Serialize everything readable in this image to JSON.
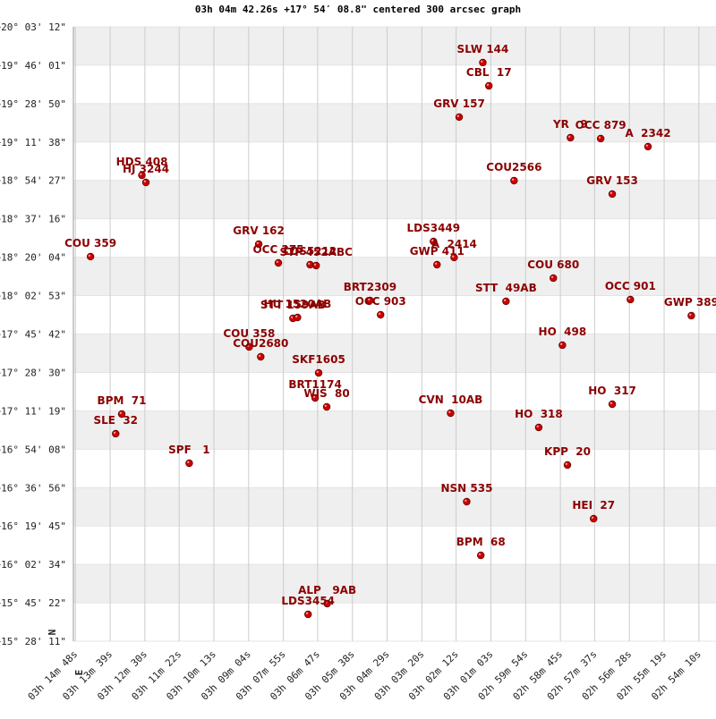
{
  "chart_data": {
    "type": "scatter",
    "title": "03h 04m 42.26s +17° 54′ 08.8\" centered 300 arcsec graph",
    "compass": {
      "north": "N",
      "east": "E"
    },
    "xlim": [
      11692,
      10416
    ],
    "ylim": [
      55691,
      72192
    ],
    "grid": true,
    "xticks": [
      {
        "value": 11688,
        "label": "03h 14m 48s"
      },
      {
        "value": 11619,
        "label": "03h 13m 39s"
      },
      {
        "value": 11550,
        "label": "03h 12m 30s"
      },
      {
        "value": 11482,
        "label": "03h 11m 22s"
      },
      {
        "value": 11413,
        "label": "03h 10m 13s"
      },
      {
        "value": 11344,
        "label": "03h 09m 04s"
      },
      {
        "value": 11275,
        "label": "03h 07m 55s"
      },
      {
        "value": 11207,
        "label": "03h 06m 47s"
      },
      {
        "value": 11138,
        "label": "03h 05m 38s"
      },
      {
        "value": 11069,
        "label": "03h 04m 29s"
      },
      {
        "value": 11000,
        "label": "03h 03m 20s"
      },
      {
        "value": 10932,
        "label": "03h 02m 12s"
      },
      {
        "value": 10863,
        "label": "03h 01m 03s"
      },
      {
        "value": 10794,
        "label": "02h 59m 54s"
      },
      {
        "value": 10725,
        "label": "02h 58m 45s"
      },
      {
        "value": 10657,
        "label": "02h 57m 37s"
      },
      {
        "value": 10588,
        "label": "02h 56m 28s"
      },
      {
        "value": 10519,
        "label": "02h 55m 19s"
      },
      {
        "value": 10450,
        "label": "02h 54m 10s"
      }
    ],
    "yticks": [
      {
        "value": 55691,
        "label": "+15° 28' 11\""
      },
      {
        "value": 56722,
        "label": "+15° 45' 22\""
      },
      {
        "value": 57754,
        "label": "+16° 02' 34\""
      },
      {
        "value": 58785,
        "label": "+16° 19' 45\""
      },
      {
        "value": 59816,
        "label": "+16° 36' 56\""
      },
      {
        "value": 60848,
        "label": "+16° 54' 08\""
      },
      {
        "value": 61879,
        "label": "+17° 11' 19\""
      },
      {
        "value": 62910,
        "label": "+17° 28' 30\""
      },
      {
        "value": 63942,
        "label": "+17° 45' 42\""
      },
      {
        "value": 64973,
        "label": "+18° 02' 53\""
      },
      {
        "value": 66004,
        "label": "+18° 20' 04\""
      },
      {
        "value": 67036,
        "label": "+18° 37' 16\""
      },
      {
        "value": 68067,
        "label": "+18° 54' 27\""
      },
      {
        "value": 69098,
        "label": "+19° 11' 38\""
      },
      {
        "value": 70130,
        "label": "+19° 28' 50\""
      },
      {
        "value": 71161,
        "label": "+19° 46' 01\""
      },
      {
        "value": 72192,
        "label": "+20° 03' 12\""
      }
    ],
    "series": [
      {
        "color": "#cc0000",
        "labels": [
          "SLW 144",
          "CBL  17",
          "GRV 157",
          "YR   9",
          "OCC 879",
          "A  2342",
          "HDS 408",
          "HJ 3244",
          "COU2566",
          "GRV 153",
          "COU 359",
          "GRV 162",
          "OCC 275",
          "LDS5212",
          "STF 452ABC",
          "LDS3449",
          "A  2414",
          "GWP 411",
          "BRT2309",
          "OCC 903",
          "STT  49AB",
          "COU 680",
          "OCC 901",
          "GWP 389",
          "HO  498",
          "STT 159AB",
          "HU 1520AB",
          "COU 358",
          "COU2680",
          "SKF1605",
          "BRT1174",
          "WIS  80",
          "BPM  71",
          "SLE  32",
          "CVN  10AB",
          "HO  317",
          "HO  318",
          "SPF   1",
          "KPP  20",
          "NSN 535",
          "HEI  27",
          "BPM  68",
          "ALP   9AB",
          "LDS3454"
        ],
        "x": [
          10879,
          10867,
          10926,
          10705,
          10645,
          10551,
          11556,
          11548,
          10817,
          10622,
          11658,
          11324,
          11285,
          11222,
          11210,
          10977,
          10936,
          10970,
          11103,
          11082,
          10833,
          10739,
          10586,
          10465,
          10721,
          11256,
          11247,
          11343,
          11320,
          11205,
          11212,
          11189,
          11596,
          11608,
          10943,
          10622,
          10768,
          11462,
          10711,
          10911,
          10659,
          10883,
          11188,
          11226
        ],
        "values": [
          71232,
          70607,
          69767,
          69214,
          69190,
          68974,
          68205,
          68013,
          68061,
          67701,
          66020,
          66356,
          65851,
          65803,
          65779,
          66428,
          65996,
          65803,
          64843,
          64458,
          64819,
          65443,
          64867,
          64434,
          63642,
          64362,
          64386,
          63594,
          63329,
          62897,
          62224,
          61984,
          61792,
          61264,
          61816,
          62056,
          61432,
          60471,
          60423,
          59438,
          58982,
          57997,
          56700,
          56412
        ]
      }
    ]
  }
}
